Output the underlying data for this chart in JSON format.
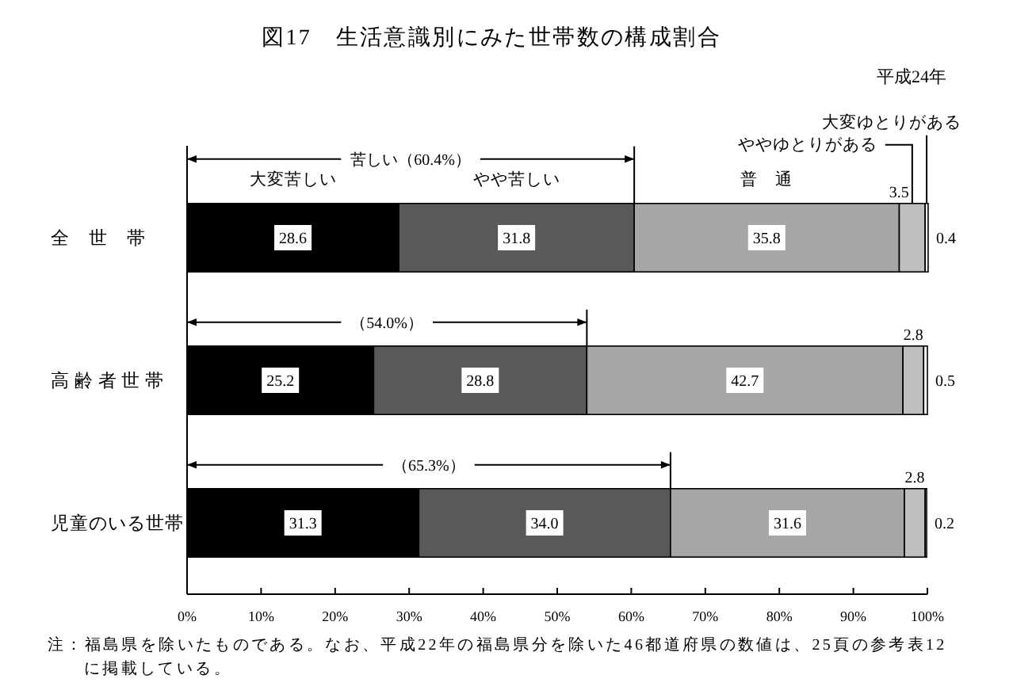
{
  "chart_data": {
    "type": "bar",
    "orientation": "horizontal",
    "stacked": true,
    "title": "図17　生活意識別にみた世帯数の構成割合",
    "subtitle": "平成24年",
    "categories": [
      "全　世　帯",
      "高 齢 者 世 帯",
      "児童のいる世帯"
    ],
    "series": [
      {
        "name": "大変苦しい",
        "color": "#000000",
        "values": [
          28.6,
          25.2,
          31.3
        ],
        "value_labels": [
          "28.6",
          "25.2",
          "31.3"
        ]
      },
      {
        "name": "やや苦しい",
        "color": "#595959",
        "values": [
          31.8,
          28.8,
          34.0
        ],
        "value_labels": [
          "31.8",
          "28.8",
          "34.0"
        ]
      },
      {
        "name": "普　通",
        "color": "#a6a6a6",
        "values": [
          35.8,
          42.7,
          31.6
        ],
        "value_labels": [
          "35.8",
          "42.7",
          "31.6"
        ]
      },
      {
        "name": "ややゆとりがある",
        "color": "#bfbfbf",
        "values": [
          3.5,
          2.8,
          2.8
        ],
        "value_labels": [
          "3.5",
          "2.8",
          "2.8"
        ]
      },
      {
        "name": "大変ゆとりがある",
        "color": "#ffffff",
        "values": [
          0.4,
          0.5,
          0.2
        ],
        "value_labels": [
          "0.4",
          "0.5",
          "0.2"
        ]
      }
    ],
    "xlim": [
      0,
      100
    ],
    "xticks": [
      {
        "value": 0,
        "label": "0%"
      },
      {
        "value": 10,
        "label": "10%"
      },
      {
        "value": 20,
        "label": "20%"
      },
      {
        "value": 30,
        "label": "30%"
      },
      {
        "value": 40,
        "label": "40%"
      },
      {
        "value": 50,
        "label": "50%"
      },
      {
        "value": 60,
        "label": "60%"
      },
      {
        "value": 70,
        "label": "70%"
      },
      {
        "value": 80,
        "label": "80%"
      },
      {
        "value": 90,
        "label": "90%"
      },
      {
        "value": 100,
        "label": "100%"
      }
    ],
    "annotations": [
      "苦しい（60.4%）",
      "（54.0%）",
      "（65.3%）",
      "注：福島県を除いたものである。なお、平成22年の福島県分を除いた46都道府県の数値は、25頁の参考表12に掲載している。"
    ]
  }
}
